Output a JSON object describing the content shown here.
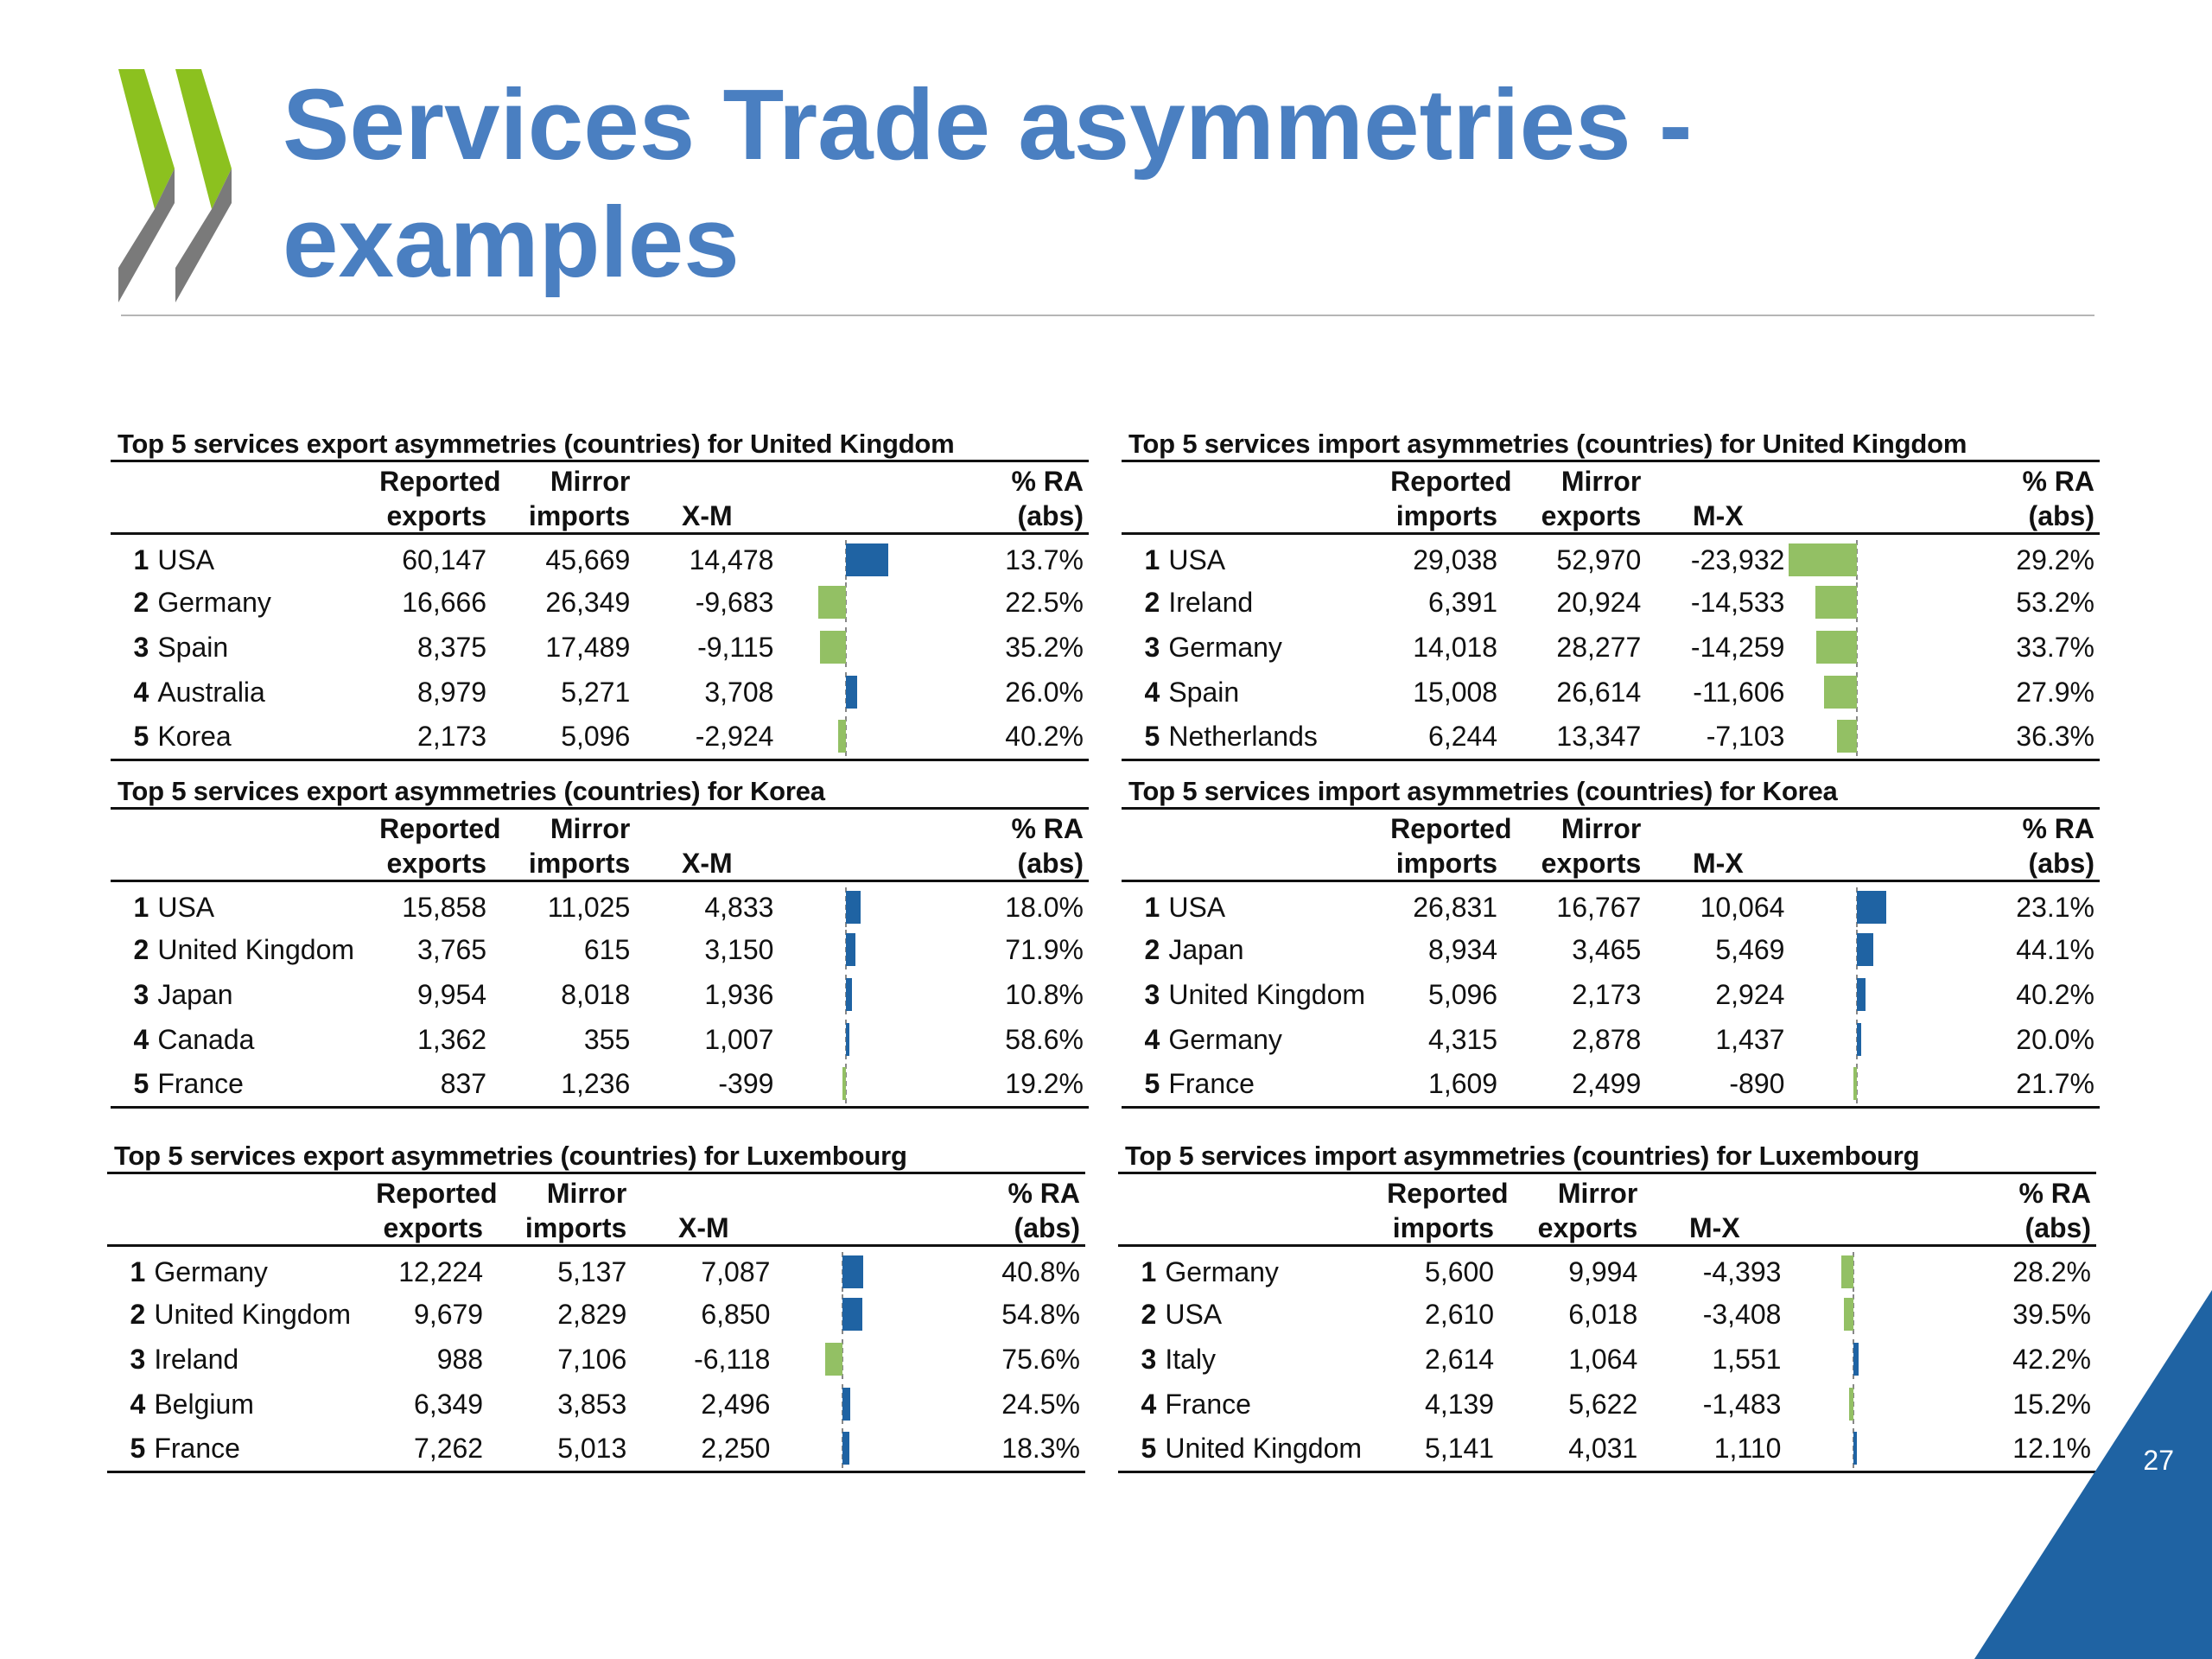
{
  "header": {
    "title_line1": "Services Trade asymmetries -",
    "title_line2": "examples"
  },
  "page_number": "27",
  "colors": {
    "positive_bar": "#1f63a3",
    "negative_bar": "#93c064",
    "title": "#4a7fc1",
    "corner": "#1f63a3"
  },
  "panels": [
    {
      "title": "Top 5 services export asymmetries (countries) for United Kingdom",
      "col1": [
        "Reported",
        "exports"
      ],
      "col2": [
        "Mirror",
        "imports"
      ],
      "col3": "X-M",
      "col4": [
        "% RA",
        "(abs)"
      ],
      "rows": [
        {
          "rank": "1",
          "name": "USA",
          "a": "60,147",
          "b": "45,669",
          "c": "14,478",
          "v": 14478,
          "pct": "13.7%"
        },
        {
          "rank": "2",
          "name": "Germany",
          "a": "16,666",
          "b": "26,349",
          "c": "-9,683",
          "v": -9683,
          "pct": "22.5%"
        },
        {
          "rank": "3",
          "name": "Spain",
          "a": "8,375",
          "b": "17,489",
          "c": "-9,115",
          "v": -9115,
          "pct": "35.2%"
        },
        {
          "rank": "4",
          "name": "Australia",
          "a": "8,979",
          "b": "5,271",
          "c": "3,708",
          "v": 3708,
          "pct": "26.0%"
        },
        {
          "rank": "5",
          "name": "Korea",
          "a": "2,173",
          "b": "5,096",
          "c": "-2,924",
          "v": -2924,
          "pct": "40.2%"
        }
      ]
    },
    {
      "title": "Top 5 services import asymmetries (countries) for United Kingdom",
      "col1": [
        "Reported",
        "imports"
      ],
      "col2": [
        "Mirror",
        "exports"
      ],
      "col3": "M-X",
      "col4": [
        "% RA",
        "(abs)"
      ],
      "rows": [
        {
          "rank": "1",
          "name": "USA",
          "a": "29,038",
          "b": "52,970",
          "c": "-23,932",
          "v": -23932,
          "pct": "29.2%"
        },
        {
          "rank": "2",
          "name": "Ireland",
          "a": "6,391",
          "b": "20,924",
          "c": "-14,533",
          "v": -14533,
          "pct": "53.2%"
        },
        {
          "rank": "3",
          "name": "Germany",
          "a": "14,018",
          "b": "28,277",
          "c": "-14,259",
          "v": -14259,
          "pct": "33.7%"
        },
        {
          "rank": "4",
          "name": "Spain",
          "a": "15,008",
          "b": "26,614",
          "c": "-11,606",
          "v": -11606,
          "pct": "27.9%"
        },
        {
          "rank": "5",
          "name": "Netherlands",
          "a": "6,244",
          "b": "13,347",
          "c": "-7,103",
          "v": -7103,
          "pct": "36.3%"
        }
      ]
    },
    {
      "title": "Top 5 services export asymmetries (countries) for Korea",
      "col1": [
        "Reported",
        "exports"
      ],
      "col2": [
        "Mirror",
        "imports"
      ],
      "col3": "X-M",
      "col4": [
        "% RA",
        "(abs)"
      ],
      "rows": [
        {
          "rank": "1",
          "name": "USA",
          "a": "15,858",
          "b": "11,025",
          "c": "4,833",
          "v": 4833,
          "pct": "18.0%"
        },
        {
          "rank": "2",
          "name": "United Kingdom",
          "a": "3,765",
          "b": "615",
          "c": "3,150",
          "v": 3150,
          "pct": "71.9%"
        },
        {
          "rank": "3",
          "name": "Japan",
          "a": "9,954",
          "b": "8,018",
          "c": "1,936",
          "v": 1936,
          "pct": "10.8%"
        },
        {
          "rank": "4",
          "name": "Canada",
          "a": "1,362",
          "b": "355",
          "c": "1,007",
          "v": 1007,
          "pct": "58.6%"
        },
        {
          "rank": "5",
          "name": "France",
          "a": "837",
          "b": "1,236",
          "c": "-399",
          "v": -399,
          "pct": "19.2%"
        }
      ]
    },
    {
      "title": "Top 5 services import asymmetries (countries) for Korea",
      "col1": [
        "Reported",
        "imports"
      ],
      "col2": [
        "Mirror",
        "exports"
      ],
      "col3": "M-X",
      "col4": [
        "% RA",
        "(abs)"
      ],
      "rows": [
        {
          "rank": "1",
          "name": "USA",
          "a": "26,831",
          "b": "16,767",
          "c": "10,064",
          "v": 10064,
          "pct": "23.1%"
        },
        {
          "rank": "2",
          "name": "Japan",
          "a": "8,934",
          "b": "3,465",
          "c": "5,469",
          "v": 5469,
          "pct": "44.1%"
        },
        {
          "rank": "3",
          "name": "United Kingdom",
          "a": "5,096",
          "b": "2,173",
          "c": "2,924",
          "v": 2924,
          "pct": "40.2%"
        },
        {
          "rank": "4",
          "name": "Germany",
          "a": "4,315",
          "b": "2,878",
          "c": "1,437",
          "v": 1437,
          "pct": "20.0%"
        },
        {
          "rank": "5",
          "name": "France",
          "a": "1,609",
          "b": "2,499",
          "c": "-890",
          "v": -890,
          "pct": "21.7%"
        }
      ]
    },
    {
      "title": "Top 5 services export asymmetries (countries) for Luxembourg",
      "col1": [
        "Reported",
        "exports"
      ],
      "col2": [
        "Mirror",
        "imports"
      ],
      "col3": "X-M",
      "col4": [
        "% RA",
        "(abs)"
      ],
      "rows": [
        {
          "rank": "1",
          "name": "Germany",
          "a": "12,224",
          "b": "5,137",
          "c": "7,087",
          "v": 7087,
          "pct": "40.8%"
        },
        {
          "rank": "2",
          "name": "United Kingdom",
          "a": "9,679",
          "b": "2,829",
          "c": "6,850",
          "v": 6850,
          "pct": "54.8%"
        },
        {
          "rank": "3",
          "name": "Ireland",
          "a": "988",
          "b": "7,106",
          "c": "-6,118",
          "v": -6118,
          "pct": "75.6%"
        },
        {
          "rank": "4",
          "name": "Belgium",
          "a": "6,349",
          "b": "3,853",
          "c": "2,496",
          "v": 2496,
          "pct": "24.5%"
        },
        {
          "rank": "5",
          "name": "France",
          "a": "7,262",
          "b": "5,013",
          "c": "2,250",
          "v": 2250,
          "pct": "18.3%"
        }
      ]
    },
    {
      "title": "Top 5 services import asymmetries (countries) for Luxembourg",
      "col1": [
        "Reported",
        "imports"
      ],
      "col2": [
        "Mirror",
        "exports"
      ],
      "col3": "M-X",
      "col4": [
        "% RA",
        "(abs)"
      ],
      "rows": [
        {
          "rank": "1",
          "name": "Germany",
          "a": "5,600",
          "b": "9,994",
          "c": "-4,393",
          "v": -4393,
          "pct": "28.2%"
        },
        {
          "rank": "2",
          "name": "USA",
          "a": "2,610",
          "b": "6,018",
          "c": "-3,408",
          "v": -3408,
          "pct": "39.5%"
        },
        {
          "rank": "3",
          "name": "Italy",
          "a": "2,614",
          "b": "1,064",
          "c": "1,551",
          "v": 1551,
          "pct": "42.2%"
        },
        {
          "rank": "4",
          "name": "France",
          "a": "4,139",
          "b": "5,622",
          "c": "-1,483",
          "v": -1483,
          "pct": "15.2%"
        },
        {
          "rank": "5",
          "name": "United Kingdom",
          "a": "5,141",
          "b": "4,031",
          "c": "1,110",
          "v": 1110,
          "pct": "12.1%"
        }
      ]
    }
  ]
}
